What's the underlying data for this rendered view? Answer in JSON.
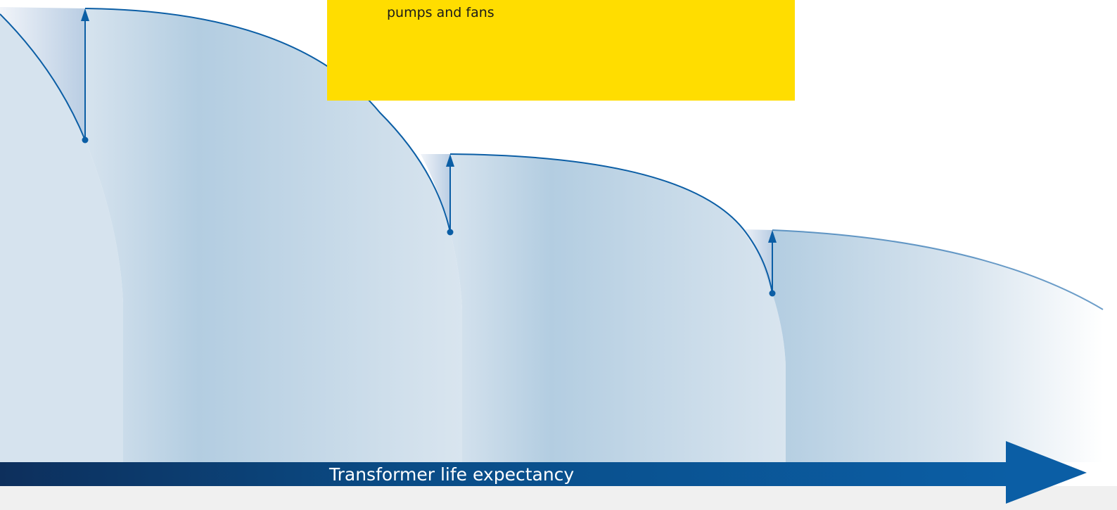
{
  "box": {
    "text": "pumps and fans"
  },
  "axis": {
    "label": "Transformer life expectancy"
  }
}
